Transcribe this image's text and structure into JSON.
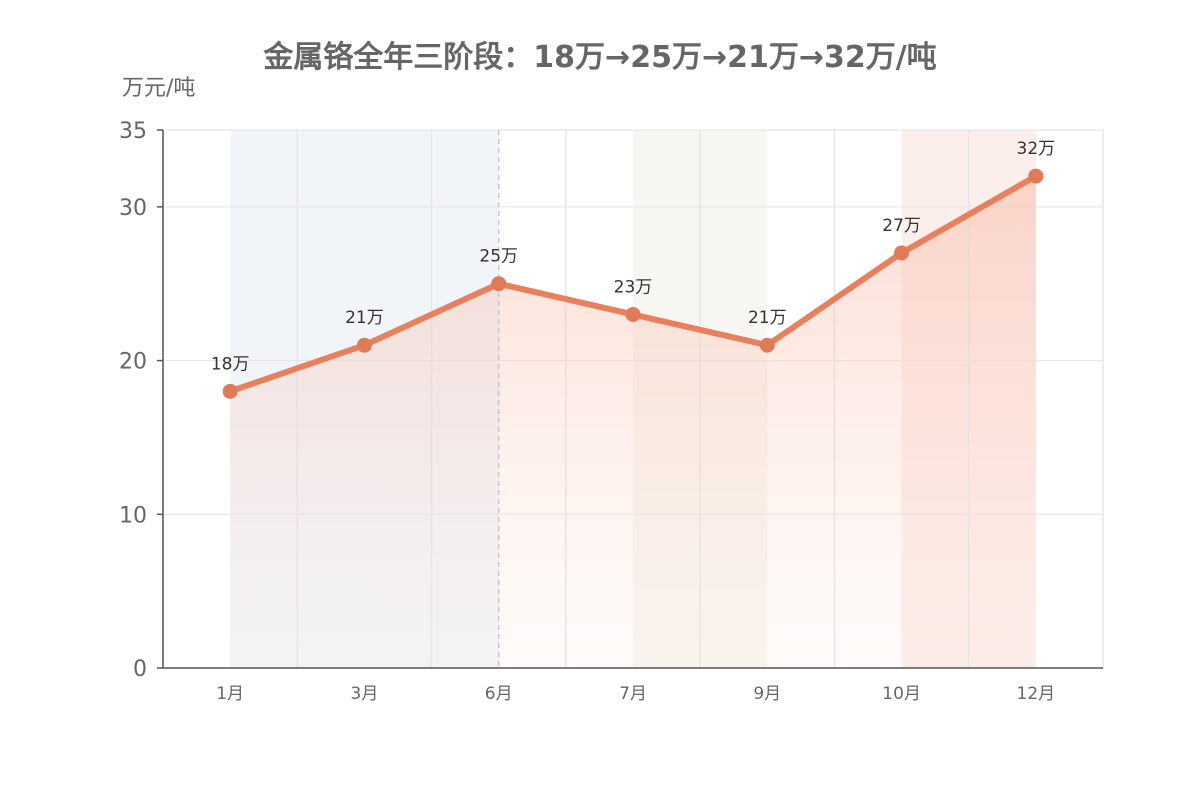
{
  "chart_data": {
    "type": "line",
    "title": "金属铬全年三阶段：18万→25万→21万→32万/吨",
    "ylabel": "万元/吨",
    "xlabel": "",
    "categories": [
      "1月",
      "3月",
      "6月",
      "7月",
      "9月",
      "10月",
      "12月"
    ],
    "series": [
      {
        "values": [
          18,
          21,
          25,
          23,
          21,
          27,
          32
        ],
        "labels": [
          "18万",
          "21万",
          "25万",
          "23万",
          "21万",
          "27万",
          "32万"
        ]
      }
    ],
    "ylim": [
      0,
      35
    ],
    "yticks": [
      0,
      10,
      20,
      30,
      35
    ],
    "grid": true,
    "colors": {
      "line": "#E8805E",
      "marker": "#E07A59",
      "band_phase1": "#F1F5FA",
      "band_phase2": "#F8F6F1",
      "band_phase3": "#FCEEEA"
    }
  }
}
